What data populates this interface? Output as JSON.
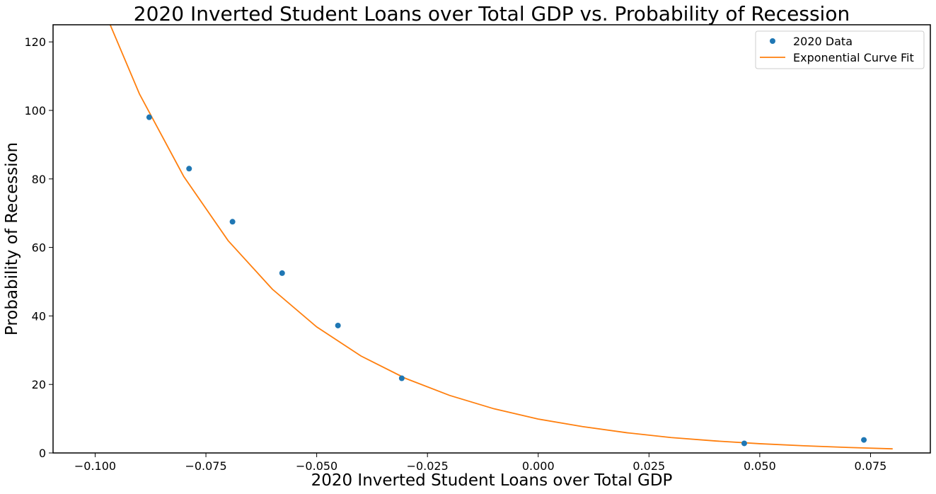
{
  "chart_data": {
    "type": "scatter",
    "title": "2020 Inverted Student Loans over Total GDP vs. Probability of Recession",
    "xlabel": "2020 Inverted Student Loans over Total GDP",
    "ylabel": "Probability of Recession",
    "xlim": [
      -0.1095,
      0.0885
    ],
    "ylim": [
      0,
      125
    ],
    "xticks": [
      -0.1,
      -0.075,
      -0.05,
      -0.025,
      0.0,
      0.025,
      0.05,
      0.075
    ],
    "xtick_labels": [
      "−0.100",
      "−0.075",
      "−0.050",
      "−0.025",
      "0.000",
      "0.025",
      "0.050",
      "0.075"
    ],
    "yticks": [
      0,
      20,
      40,
      60,
      80,
      100,
      120
    ],
    "ytick_labels": [
      "0",
      "20",
      "40",
      "60",
      "80",
      "100",
      "120"
    ],
    "grid": false,
    "legend_position": "top-right",
    "series": [
      {
        "name": "2020 Data",
        "kind": "scatter",
        "color": "#1f77b4",
        "x": [
          -0.0878,
          -0.0788,
          -0.069,
          -0.0578,
          -0.0452,
          -0.0308,
          0.0465,
          0.0735
        ],
        "y": [
          98,
          83,
          67.5,
          52.5,
          37.2,
          21.8,
          2.8,
          3.8
        ]
      },
      {
        "name": "Exponential Curve Fit",
        "kind": "line",
        "color": "#ff7f0e",
        "x": [
          -0.097,
          -0.09,
          -0.08,
          -0.07,
          -0.06,
          -0.05,
          -0.04,
          -0.03,
          -0.02,
          -0.01,
          0.0,
          0.01,
          0.02,
          0.03,
          0.04,
          0.05,
          0.06,
          0.07,
          0.08
        ],
        "y": [
          126.2,
          104.8,
          80.7,
          62.0,
          47.8,
          36.8,
          28.3,
          21.8,
          16.8,
          12.9,
          9.9,
          7.7,
          5.9,
          4.5,
          3.5,
          2.7,
          2.1,
          1.6,
          1.2
        ]
      }
    ]
  }
}
